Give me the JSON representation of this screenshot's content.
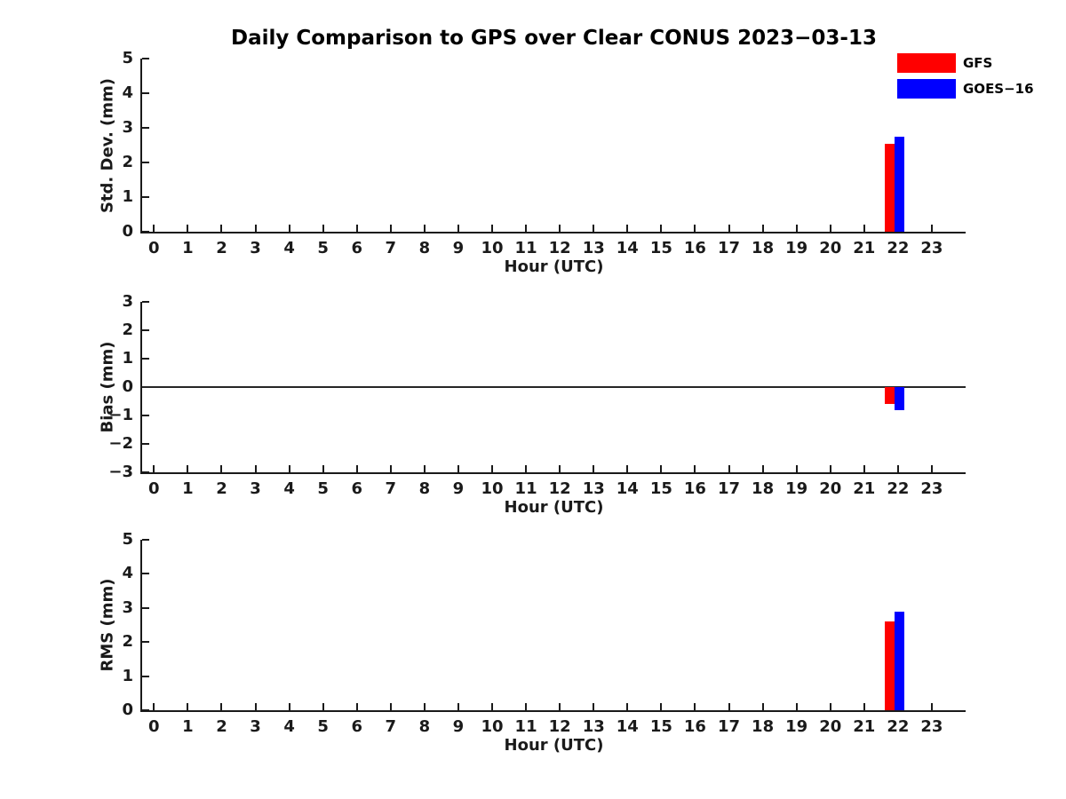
{
  "title": "Daily Comparison to GPS over Clear CONUS 2023-03-13",
  "axis_color": "#1a1a1a",
  "legend": {
    "items": [
      {
        "label": "GFS",
        "color": "#ff0000"
      },
      {
        "label": "GOES-16",
        "color": "#0000ff"
      }
    ]
  },
  "chart_data": [
    {
      "type": "bar",
      "ylabel": "Std. Dev. (mm)",
      "xlabel": "Hour (UTC)",
      "ylim": [
        0,
        5
      ],
      "yticks": [
        0,
        1,
        2,
        3,
        4,
        5
      ],
      "xlim": [
        -0.35,
        24.0
      ],
      "xticks": [
        0,
        1,
        2,
        3,
        4,
        5,
        6,
        7,
        8,
        9,
        10,
        11,
        12,
        13,
        14,
        15,
        16,
        17,
        18,
        19,
        20,
        21,
        22,
        23
      ],
      "zero_line": false,
      "grid": false,
      "bar_width_hours": 0.3,
      "series": [
        {
          "name": "GFS",
          "color": "#ff0000",
          "points": [
            {
              "hour": 21.75,
              "value": 2.55
            }
          ]
        },
        {
          "name": "GOES-16",
          "color": "#0000ff",
          "points": [
            {
              "hour": 22.05,
              "value": 2.75
            }
          ]
        }
      ]
    },
    {
      "type": "bar",
      "ylabel": "Bias (mm)",
      "xlabel": "Hour (UTC)",
      "ylim": [
        -3,
        3
      ],
      "yticks": [
        -3,
        -2,
        -1,
        0,
        1,
        2,
        3
      ],
      "xlim": [
        -0.35,
        24.0
      ],
      "xticks": [
        0,
        1,
        2,
        3,
        4,
        5,
        6,
        7,
        8,
        9,
        10,
        11,
        12,
        13,
        14,
        15,
        16,
        17,
        18,
        19,
        20,
        21,
        22,
        23
      ],
      "zero_line": true,
      "grid": false,
      "bar_width_hours": 0.3,
      "series": [
        {
          "name": "GFS",
          "color": "#ff0000",
          "points": [
            {
              "hour": 21.75,
              "value": -0.6
            }
          ]
        },
        {
          "name": "GOES-16",
          "color": "#0000ff",
          "points": [
            {
              "hour": 22.05,
              "value": -0.8
            }
          ]
        }
      ]
    },
    {
      "type": "bar",
      "ylabel": "RMS (mm)",
      "xlabel": "Hour (UTC)",
      "ylim": [
        0,
        5
      ],
      "yticks": [
        0,
        1,
        2,
        3,
        4,
        5
      ],
      "xlim": [
        -0.35,
        24.0
      ],
      "xticks": [
        0,
        1,
        2,
        3,
        4,
        5,
        6,
        7,
        8,
        9,
        10,
        11,
        12,
        13,
        14,
        15,
        16,
        17,
        18,
        19,
        20,
        21,
        22,
        23
      ],
      "zero_line": false,
      "grid": false,
      "bar_width_hours": 0.3,
      "series": [
        {
          "name": "GFS",
          "color": "#ff0000",
          "points": [
            {
              "hour": 21.75,
              "value": 2.6
            }
          ]
        },
        {
          "name": "GOES-16",
          "color": "#0000ff",
          "points": [
            {
              "hour": 22.05,
              "value": 2.9
            }
          ]
        }
      ]
    }
  ]
}
